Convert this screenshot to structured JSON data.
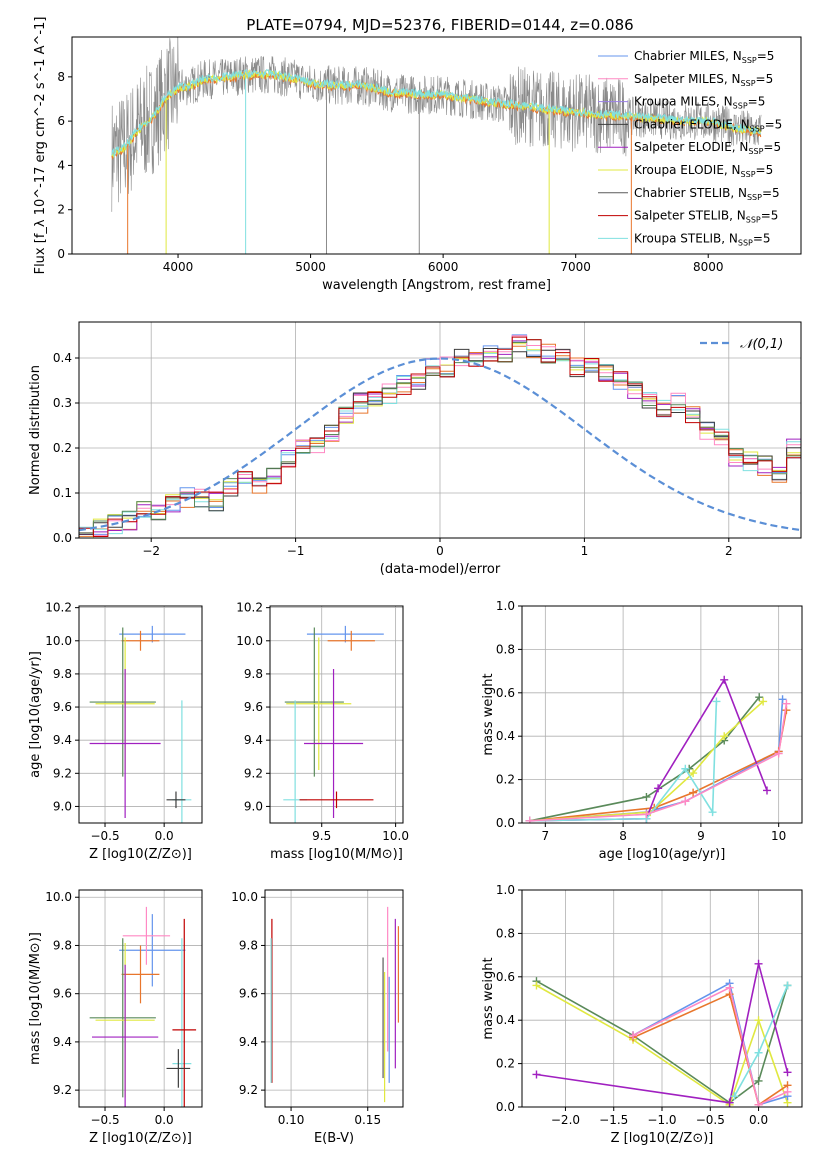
{
  "title": "PLATE=0794, MJD=52376, FIBERID=0144, z=0.086",
  "palette": [
    "#6495ed",
    "#ff89c4",
    "#9b7fe6",
    "#3c3c3c",
    "#a020c0",
    "#e0e840",
    "#5a5a5a",
    "#c00000",
    "#80e0e0"
  ],
  "chart_data": [
    {
      "id": "spectrum",
      "type": "line",
      "xlabel": "wavelength [Angstrom, rest frame]",
      "ylabel": "Flux [f_λ 10^-17 erg cm^-2 s^-1 A^-1]",
      "xlim": [
        3200,
        8700
      ],
      "ylim": [
        0,
        9.8
      ],
      "xticks": [
        4000,
        5000,
        6000,
        7000,
        8000
      ],
      "yticks": [
        0,
        2,
        4,
        6,
        8
      ],
      "grid": false,
      "legend_position": "right",
      "series": [
        {
          "name": "Chabrier MILES, N_SSP=5",
          "color": "#6495ed"
        },
        {
          "name": "Salpeter MILES, N_SSP=5",
          "color": "#ff89c4"
        },
        {
          "name": "Kroupa MILES, N_SSP=5",
          "color": "#9b7fe6"
        },
        {
          "name": "Chabrier ELODIE, N_SSP=5",
          "color": "#3c3c3c"
        },
        {
          "name": "Salpeter ELODIE, N_SSP=5",
          "color": "#a020c0"
        },
        {
          "name": "Kroupa ELODIE, N_SSP=5",
          "color": "#e0e840"
        },
        {
          "name": "Chabrier STELIB, N_SSP=5",
          "color": "#5a5a5a"
        },
        {
          "name": "Salpeter STELIB, N_SSP=5",
          "color": "#c00000"
        },
        {
          "name": "Kroupa STELIB, N_SSP=5",
          "color": "#80e0e0"
        }
      ],
      "data_curve": {
        "x": [
          3500,
          3600,
          3700,
          3800,
          3900,
          4000,
          4100,
          4200,
          4300,
          4400,
          4500,
          4600,
          4700,
          4800,
          4900,
          5000,
          5200,
          5400,
          5600,
          5800,
          6000,
          6200,
          6400,
          6600,
          6800,
          7000,
          7200,
          7400,
          7600,
          7800,
          8000,
          8200,
          8400
        ],
        "y": [
          4.5,
          4.8,
          5.6,
          6.1,
          7.0,
          7.5,
          7.6,
          7.9,
          7.9,
          8.0,
          8.1,
          8.1,
          8.1,
          8.0,
          7.9,
          7.7,
          7.6,
          7.6,
          7.3,
          7.2,
          7.2,
          7.0,
          6.8,
          6.7,
          6.5,
          6.4,
          6.3,
          6.2,
          6.1,
          6.0,
          6.0,
          5.7,
          5.5
        ]
      }
    },
    {
      "id": "residuals",
      "type": "area",
      "xlabel": "(data-model)/error",
      "ylabel": "Normed distribution",
      "xlim": [
        -2.5,
        2.5
      ],
      "ylim": [
        0,
        0.48
      ],
      "xticks": [
        -2,
        -1,
        0,
        1,
        2
      ],
      "yticks": [
        0.0,
        0.1,
        0.2,
        0.3,
        0.4
      ],
      "grid": true,
      "legend": "𝒩(0,1)",
      "legend_position": "top-right",
      "bin_edges_start": -2.5,
      "bin_width": 0.1,
      "hist_values": [
        0.02,
        0.02,
        0.03,
        0.04,
        0.06,
        0.06,
        0.08,
        0.09,
        0.09,
        0.08,
        0.11,
        0.13,
        0.12,
        0.14,
        0.18,
        0.2,
        0.2,
        0.23,
        0.27,
        0.3,
        0.31,
        0.32,
        0.34,
        0.35,
        0.38,
        0.38,
        0.4,
        0.4,
        0.41,
        0.4,
        0.43,
        0.42,
        0.41,
        0.4,
        0.38,
        0.39,
        0.37,
        0.35,
        0.33,
        0.31,
        0.29,
        0.3,
        0.27,
        0.24,
        0.22,
        0.18,
        0.17,
        0.16,
        0.14,
        0.2,
        0.21,
        0.13,
        0.12,
        0.1,
        0.09,
        0.07,
        0.07,
        0.06,
        0.06,
        0.05,
        0.04,
        0.04,
        0.03,
        0.03,
        0.03
      ]
    },
    {
      "id": "age_vs_Z",
      "type": "scatter",
      "xlabel": "Z [log10(Z/Z⊙)]",
      "ylabel": "age  [log10(age/yr)]",
      "xlim": [
        -0.72,
        0.32
      ],
      "ylim": [
        8.9,
        10.21
      ],
      "xticks": [
        -0.5,
        0.0
      ],
      "yticks": [
        9.0,
        9.2,
        9.4,
        9.6,
        9.8,
        10.0,
        10.2
      ],
      "grid": true,
      "points": [
        {
          "x": -0.1,
          "y": 10.04,
          "xerr": 0.28,
          "yerr": 0.05,
          "color": "#6495ed"
        },
        {
          "x": -0.2,
          "y": 10.0,
          "xerr": 0.16,
          "yerr": 0.06,
          "color": "#e8762c"
        },
        {
          "x": -0.35,
          "y": 9.63,
          "xerr": 0.28,
          "yerr": 0.45,
          "color": "#5a8a5a"
        },
        {
          "x": -0.33,
          "y": 9.62,
          "xerr": 0.25,
          "yerr": 0.4,
          "color": "#e0e840"
        },
        {
          "x": -0.33,
          "y": 9.38,
          "xerr": 0.3,
          "yerr": 0.45,
          "color": "#a020c0"
        },
        {
          "x": 0.15,
          "y": 9.04,
          "xerr": 0.08,
          "yerr": 0.6,
          "color": "#80e0e0"
        },
        {
          "x": 0.1,
          "y": 9.04,
          "xerr": 0.08,
          "yerr": 0.05,
          "color": "#3c3c3c"
        }
      ]
    },
    {
      "id": "age_vs_mass",
      "type": "scatter",
      "xlabel": "mass [log10(M/M⊙)]",
      "ylabel": "",
      "xlim": [
        9.15,
        10.05
      ],
      "ylim": [
        8.9,
        10.21
      ],
      "xticks": [
        9.5,
        10.0
      ],
      "yticks": [
        9.0,
        9.2,
        9.4,
        9.6,
        9.8,
        10.0,
        10.2
      ],
      "grid": true,
      "points": [
        {
          "x": 9.66,
          "y": 10.04,
          "xerr": 0.26,
          "yerr": 0.05,
          "color": "#6495ed"
        },
        {
          "x": 9.7,
          "y": 10.0,
          "xerr": 0.16,
          "yerr": 0.06,
          "color": "#e8762c"
        },
        {
          "x": 9.45,
          "y": 9.63,
          "xerr": 0.2,
          "yerr": 0.45,
          "color": "#5a8a5a"
        },
        {
          "x": 9.48,
          "y": 9.62,
          "xerr": 0.22,
          "yerr": 0.4,
          "color": "#e0e840"
        },
        {
          "x": 9.58,
          "y": 9.38,
          "xerr": 0.2,
          "yerr": 0.45,
          "color": "#a020c0"
        },
        {
          "x": 9.32,
          "y": 9.04,
          "xerr": 0.08,
          "yerr": 0.6,
          "color": "#80e0e0"
        },
        {
          "x": 9.6,
          "y": 9.04,
          "xerr": 0.25,
          "yerr": 0.05,
          "color": "#c00000"
        }
      ]
    },
    {
      "id": "massweight_vs_age",
      "type": "line",
      "xlabel": "age  [log10(age/yr)]",
      "ylabel": "mass weight",
      "xlim": [
        6.7,
        10.3
      ],
      "ylim": [
        0,
        1.0
      ],
      "xticks": [
        7,
        8,
        9,
        10
      ],
      "yticks": [
        0.0,
        0.2,
        0.4,
        0.6,
        0.8,
        1.0
      ],
      "grid": true,
      "series": [
        {
          "color": "#6495ed",
          "x": [
            6.8,
            8.3,
            8.8,
            10.0,
            10.05
          ],
          "y": [
            0.01,
            0.05,
            0.1,
            0.33,
            0.57
          ]
        },
        {
          "color": "#e8762c",
          "x": [
            6.8,
            8.4,
            8.9,
            10.0,
            10.1
          ],
          "y": [
            0.01,
            0.07,
            0.14,
            0.33,
            0.52
          ]
        },
        {
          "color": "#5a8a5a",
          "x": [
            6.8,
            8.3,
            8.85,
            9.3,
            9.75
          ],
          "y": [
            0.01,
            0.12,
            0.25,
            0.38,
            0.58
          ]
        },
        {
          "color": "#e0e840",
          "x": [
            6.8,
            8.35,
            8.9,
            9.3,
            9.8
          ],
          "y": [
            0.01,
            0.05,
            0.23,
            0.4,
            0.56
          ]
        },
        {
          "color": "#a020c0",
          "x": [
            6.8,
            8.3,
            8.45,
            9.3,
            9.85
          ],
          "y": [
            0.01,
            0.02,
            0.16,
            0.66,
            0.15
          ]
        },
        {
          "color": "#80e0e0",
          "x": [
            6.8,
            8.3,
            8.8,
            9.15,
            9.2
          ],
          "y": [
            0.01,
            0.02,
            0.25,
            0.05,
            0.56
          ]
        },
        {
          "color": "#ff89c4",
          "x": [
            6.8,
            8.3,
            8.8,
            10.0,
            10.1
          ],
          "y": [
            0.01,
            0.04,
            0.1,
            0.32,
            0.55
          ]
        }
      ]
    },
    {
      "id": "mass_vs_Z",
      "type": "scatter",
      "xlabel": "Z [log10(Z/Z⊙)]",
      "ylabel": "mass [log10(M/M⊙)]",
      "xlim": [
        -0.72,
        0.32
      ],
      "ylim": [
        9.13,
        10.03
      ],
      "xticks": [
        -0.5,
        0.0
      ],
      "yticks": [
        9.2,
        9.4,
        9.6,
        9.8,
        10.0
      ],
      "grid": true,
      "points": [
        {
          "x": -0.1,
          "y": 9.78,
          "xerr": 0.28,
          "yerr": 0.15,
          "color": "#6495ed"
        },
        {
          "x": -0.15,
          "y": 9.84,
          "xerr": 0.2,
          "yerr": 0.12,
          "color": "#ff89c4"
        },
        {
          "x": -0.2,
          "y": 9.68,
          "xerr": 0.16,
          "yerr": 0.12,
          "color": "#e8762c"
        },
        {
          "x": -0.35,
          "y": 9.5,
          "xerr": 0.28,
          "yerr": 0.33,
          "color": "#5a8a5a"
        },
        {
          "x": -0.33,
          "y": 9.49,
          "xerr": 0.25,
          "yerr": 0.32,
          "color": "#e0e840"
        },
        {
          "x": -0.33,
          "y": 9.42,
          "xerr": 0.28,
          "yerr": 0.3,
          "color": "#a020c0"
        },
        {
          "x": 0.15,
          "y": 9.31,
          "xerr": 0.08,
          "yerr": 0.52,
          "color": "#80e0e0"
        },
        {
          "x": 0.17,
          "y": 9.45,
          "xerr": 0.1,
          "yerr": 0.46,
          "color": "#c00000"
        },
        {
          "x": 0.12,
          "y": 9.29,
          "xerr": 0.1,
          "yerr": 0.08,
          "color": "#3c3c3c"
        }
      ]
    },
    {
      "id": "mass_vs_ebv",
      "type": "scatter",
      "xlabel": "E(B-V)",
      "ylabel": "",
      "xlim": [
        0.083,
        0.173
      ],
      "ylim": [
        9.13,
        10.03
      ],
      "xticks": [
        0.1,
        0.15
      ],
      "yticks": [
        9.2,
        9.4,
        9.6,
        9.8,
        10.0
      ],
      "grid": true,
      "points": [
        {
          "x": 0.0875,
          "y": 9.57,
          "yerr": 0.34,
          "color": "#c00000"
        },
        {
          "x": 0.087,
          "y": 9.53,
          "yerr": 0.3,
          "color": "#80e0e0"
        },
        {
          "x": 0.16,
          "y": 9.5,
          "yerr": 0.25,
          "color": "#5a5a5a"
        },
        {
          "x": 0.161,
          "y": 9.42,
          "yerr": 0.27,
          "color": "#e0e840"
        },
        {
          "x": 0.163,
          "y": 9.66,
          "yerr": 0.3,
          "color": "#ff89c4"
        },
        {
          "x": 0.164,
          "y": 9.45,
          "yerr": 0.22,
          "color": "#6495ed"
        },
        {
          "x": 0.168,
          "y": 9.6,
          "yerr": 0.31,
          "color": "#a020c0"
        },
        {
          "x": 0.17,
          "y": 9.68,
          "yerr": 0.2,
          "color": "#e8762c"
        }
      ]
    },
    {
      "id": "massweight_vs_Z",
      "type": "line",
      "xlabel": "Z [log10(Z/Z⊙)]",
      "ylabel": "mass weight",
      "xlim": [
        -2.45,
        0.45
      ],
      "ylim": [
        0,
        1.0
      ],
      "xticks": [
        -2.0,
        -1.5,
        -1.0,
        -0.5,
        0.0
      ],
      "yticks": [
        0.0,
        0.2,
        0.4,
        0.6,
        0.8,
        1.0
      ],
      "grid": true,
      "series": [
        {
          "color": "#5a8a5a",
          "x": [
            -2.3,
            -1.3,
            -0.3,
            0.0,
            0.3
          ],
          "y": [
            0.58,
            0.33,
            0.02,
            0.12,
            0.56
          ]
        },
        {
          "color": "#e0e840",
          "x": [
            -2.3,
            -1.3,
            -0.3,
            0.0,
            0.3
          ],
          "y": [
            0.56,
            0.31,
            0.01,
            0.4,
            0.02
          ]
        },
        {
          "color": "#6495ed",
          "x": [
            -1.3,
            -0.3,
            0.0,
            0.3
          ],
          "y": [
            0.33,
            0.57,
            0.01,
            0.05
          ]
        },
        {
          "color": "#e8762c",
          "x": [
            -1.3,
            -0.3,
            0.0,
            0.3
          ],
          "y": [
            0.32,
            0.52,
            0.01,
            0.1
          ]
        },
        {
          "color": "#ff89c4",
          "x": [
            -1.3,
            -0.3,
            0.0,
            0.3
          ],
          "y": [
            0.33,
            0.55,
            0.01,
            0.07
          ]
        },
        {
          "color": "#a020c0",
          "x": [
            -2.3,
            -0.3,
            0.0,
            0.3
          ],
          "y": [
            0.15,
            0.02,
            0.66,
            0.16
          ]
        },
        {
          "color": "#80e0e0",
          "x": [
            -0.25,
            0.0,
            0.3
          ],
          "y": [
            0.05,
            0.25,
            0.56
          ]
        }
      ]
    }
  ]
}
